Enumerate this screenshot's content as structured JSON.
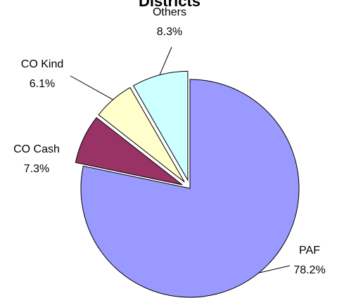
{
  "chart_data": {
    "type": "pie",
    "title": "Districts",
    "categories": [
      "PAF",
      "CO Cash",
      "CO Kind",
      "Others"
    ],
    "values": [
      78.2,
      7.3,
      6.1,
      8.3
    ],
    "value_labels": [
      "78.2%",
      "7.3%",
      "6.1%",
      "8.3%"
    ],
    "colors": [
      "#9999ff",
      "#993366",
      "#ffffcc",
      "#ccffff"
    ]
  }
}
